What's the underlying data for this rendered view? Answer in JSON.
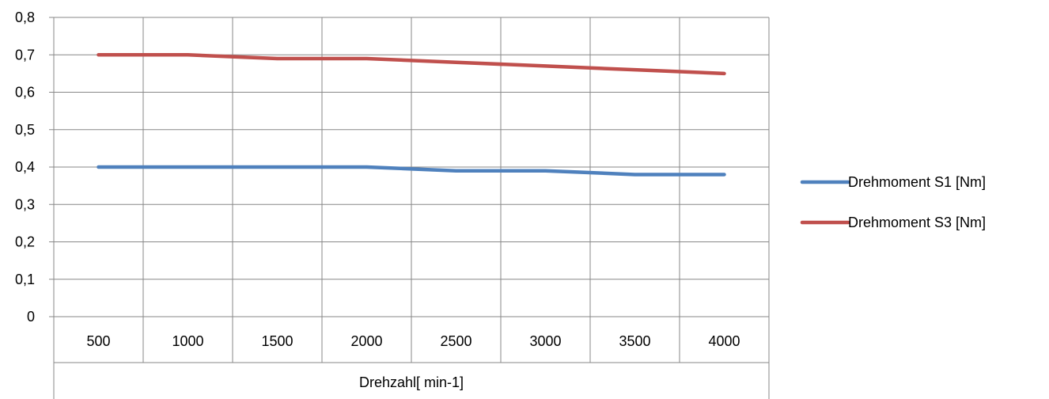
{
  "chart_data": {
    "type": "line",
    "categories": [
      "500",
      "1000",
      "1500",
      "2000",
      "2500",
      "3000",
      "3500",
      "4000"
    ],
    "xlabel": "Drehzahl[ min-1]",
    "ylabel": "",
    "ylim": [
      0,
      0.8
    ],
    "yticks": [
      "0",
      "0,1",
      "0,2",
      "0,3",
      "0,4",
      "0,5",
      "0,6",
      "0,7",
      "0,8"
    ],
    "grid": true,
    "legend_position": "right",
    "series": [
      {
        "name": "Drehmoment S1 [Nm]",
        "color": "#4F81BD",
        "values": [
          0.4,
          0.4,
          0.4,
          0.4,
          0.39,
          0.39,
          0.38,
          0.38
        ]
      },
      {
        "name": "Drehmoment S3 [Nm]",
        "color": "#C0504D",
        "values": [
          0.7,
          0.7,
          0.69,
          0.69,
          0.68,
          0.67,
          0.66,
          0.65
        ]
      }
    ]
  }
}
